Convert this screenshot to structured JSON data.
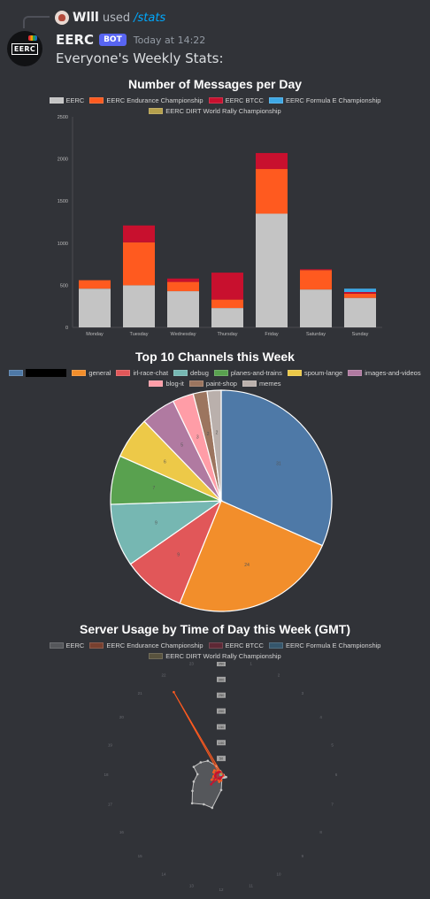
{
  "reply": {
    "user": "Wlll",
    "used_text": "used",
    "command": "/stats"
  },
  "bot": {
    "name": "EERC",
    "tag": "BOT",
    "avatar_text": "EERC",
    "timestamp": "Today at 14:22",
    "message": "Everyone's Weekly Stats:"
  },
  "colors": {
    "eerc": "#c4c4c4",
    "endurance": "#ff5a1f",
    "btcc": "#c8102e",
    "formula_e": "#3ea8e5",
    "dirt": "#b5a04c"
  },
  "chart_data": [
    {
      "type": "bar",
      "stacked": true,
      "title": "Number of Messages per Day",
      "legend_position": "top",
      "categories": [
        "Monday",
        "Tuesday",
        "Wednesday",
        "Thursday",
        "Friday",
        "Saturday",
        "Sunday"
      ],
      "ylim": [
        0,
        2500
      ],
      "yticks": [
        "0",
        "500",
        "1000",
        "1500",
        "2000",
        "2500"
      ],
      "series": [
        {
          "name": "EERC",
          "color": "#c4c4c4",
          "values": [
            460,
            500,
            430,
            230,
            1350,
            450,
            350
          ]
        },
        {
          "name": "EERC Endurance Championship",
          "color": "#ff5a1f",
          "values": [
            100,
            510,
            110,
            100,
            530,
            230,
            50
          ]
        },
        {
          "name": "EERC BTCC",
          "color": "#c8102e",
          "values": [
            0,
            200,
            40,
            320,
            190,
            10,
            20
          ]
        },
        {
          "name": "EERC Formula E Championship",
          "color": "#3ea8e5",
          "values": [
            0,
            0,
            0,
            0,
            0,
            0,
            40
          ]
        },
        {
          "name": "EERC DIRT World Rally Championship",
          "color": "#b5a04c",
          "values": [
            0,
            0,
            0,
            0,
            0,
            0,
            0
          ]
        }
      ]
    },
    {
      "type": "pie",
      "title": "Top 10 Channels this Week",
      "legend_position": "top",
      "slices": [
        {
          "label": "",
          "value": 31,
          "color": "#4e79a7",
          "redacted": true
        },
        {
          "label": "general",
          "value": 24,
          "color": "#f28e2b"
        },
        {
          "label": "irl-race-chat",
          "value": 9,
          "color": "#e15759"
        },
        {
          "label": "debug",
          "value": 9,
          "color": "#76b7b2"
        },
        {
          "label": "planes-and-trains",
          "value": 7,
          "color": "#59a14f"
        },
        {
          "label": "spoum-lange",
          "value": 6,
          "color": "#edc948"
        },
        {
          "label": "images-and-videos",
          "value": 5,
          "color": "#b07aa1"
        },
        {
          "label": "blog-it",
          "value": 3,
          "color": "#ff9da7"
        },
        {
          "label": "paint-shop",
          "value": 2,
          "color": "#9c755f"
        },
        {
          "label": "memes",
          "value": 2,
          "color": "#bab0ac"
        }
      ]
    },
    {
      "type": "radar",
      "title": "Server Usage by Time of Day this Week (GMT)",
      "legend_position": "top",
      "hours": [
        "0",
        "1",
        "2",
        "3",
        "4",
        "5",
        "6",
        "7",
        "8",
        "9",
        "10",
        "11",
        "12",
        "13",
        "14",
        "15",
        "16",
        "17",
        "18",
        "19",
        "20",
        "21",
        "22",
        "23"
      ],
      "rlim": [
        0,
        350
      ],
      "rticks": [
        "50",
        "100",
        "150",
        "200",
        "250",
        "300",
        "350"
      ],
      "series": [
        {
          "name": "EERC",
          "color": "#c4c4c4",
          "fill": "rgba(196,196,196,0.25)",
          "values": [
            5,
            3,
            2,
            2,
            2,
            2,
            3,
            8,
            18,
            15,
            12,
            10,
            50,
            110,
            110,
            130,
            105,
            90,
            75,
            90,
            75,
            60,
            30,
            10
          ]
        },
        {
          "name": "EERC Endurance Championship",
          "color": "#ff5a1f",
          "fill": "rgba(255,90,31,0.35)",
          "values": [
            4,
            2,
            2,
            2,
            2,
            2,
            2,
            5,
            8,
            6,
            8,
            5,
            20,
            25,
            20,
            25,
            35,
            25,
            20,
            25,
            25,
            15,
            300,
            8
          ]
        },
        {
          "name": "EERC BTCC",
          "color": "#c8102e",
          "fill": "rgba(200,16,46,0.3)",
          "values": [
            3,
            2,
            1,
            1,
            1,
            1,
            2,
            3,
            5,
            4,
            5,
            4,
            10,
            15,
            15,
            45,
            20,
            20,
            18,
            15,
            12,
            10,
            8,
            4
          ]
        },
        {
          "name": "EERC Formula E Championship",
          "color": "#3ea8e5",
          "fill": "rgba(62,168,229,0.3)",
          "values": [
            0,
            0,
            0,
            0,
            0,
            0,
            0,
            0,
            1,
            1,
            1,
            1,
            2,
            2,
            3,
            3,
            3,
            2,
            2,
            2,
            1,
            1,
            1,
            0
          ]
        },
        {
          "name": "EERC DIRT World Rally Championship",
          "color": "#b5a04c",
          "fill": "rgba(181,160,76,0.3)",
          "values": [
            0,
            0,
            0,
            0,
            0,
            0,
            0,
            0,
            0,
            0,
            0,
            0,
            0,
            0,
            0,
            0,
            0,
            0,
            0,
            0,
            0,
            0,
            0,
            0
          ]
        }
      ]
    }
  ]
}
